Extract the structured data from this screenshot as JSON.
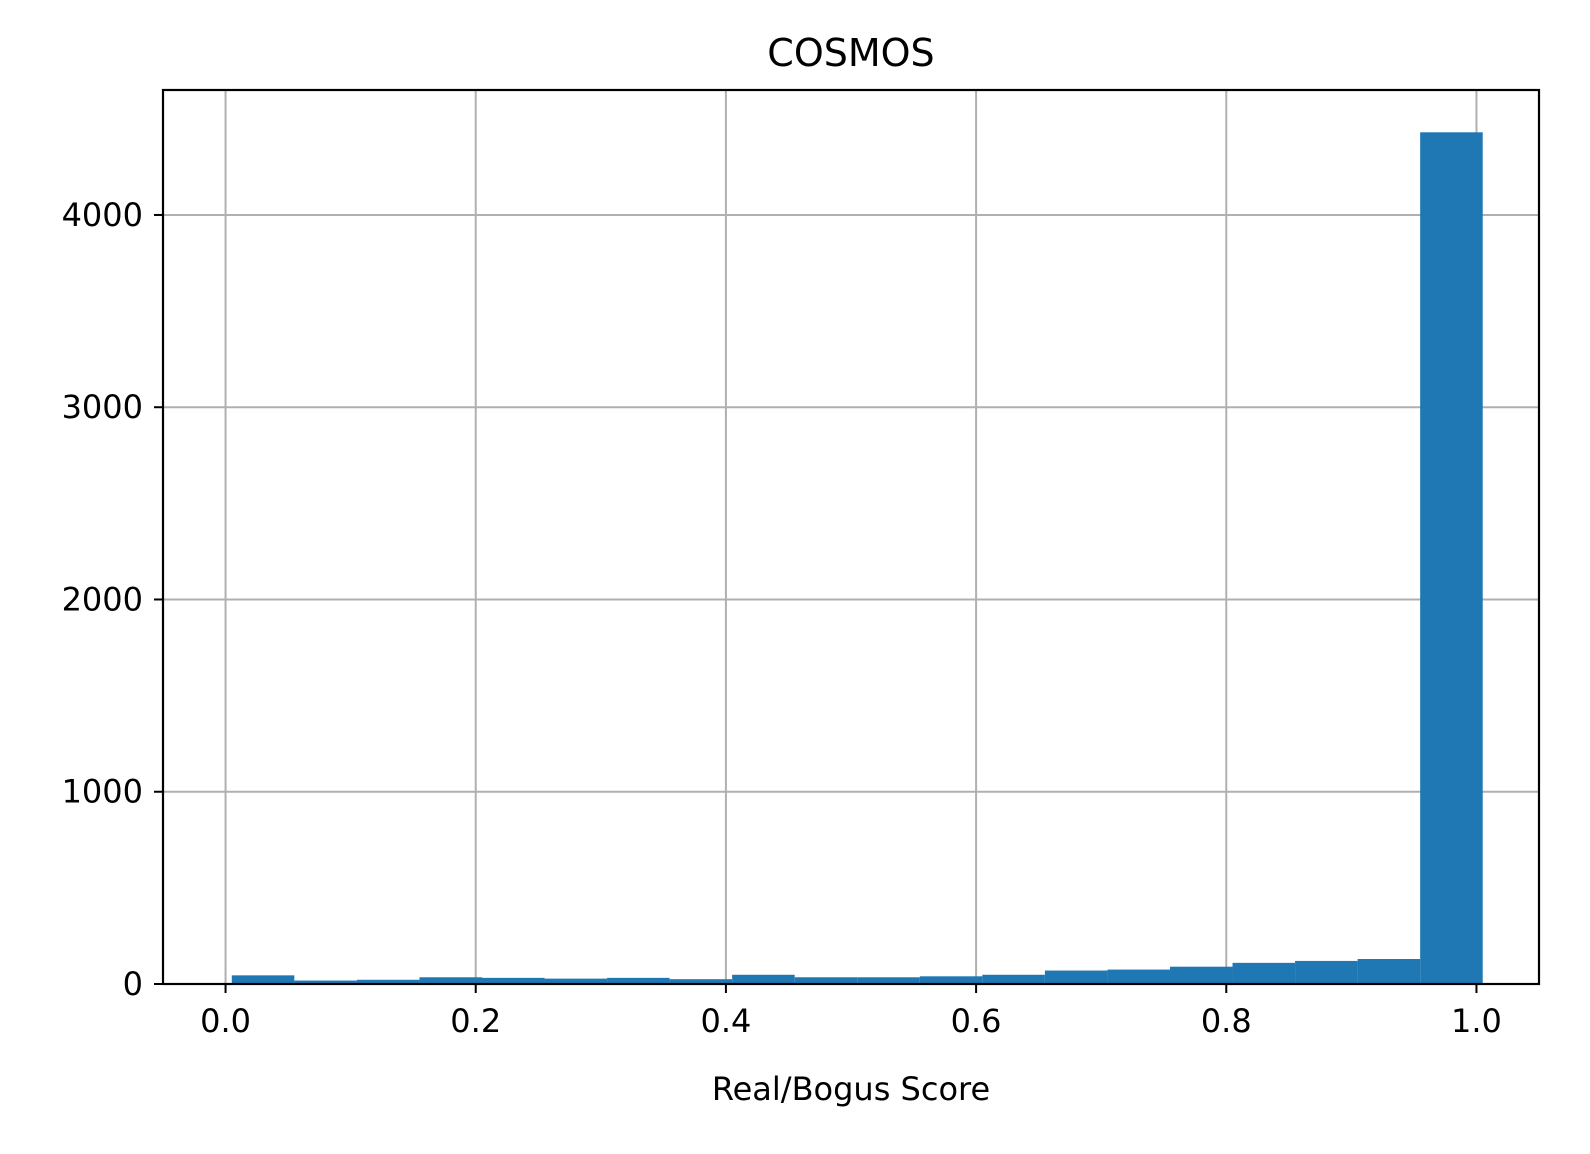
{
  "chart_data": {
    "type": "bar",
    "title": "COSMOS",
    "xlabel": "Real/Bogus Score",
    "ylabel": "",
    "xlim": [
      -0.05,
      1.05
    ],
    "ylim": [
      0,
      4650
    ],
    "grid": true,
    "bar_color": "#1f77b4",
    "grid_color": "#b0b0b0",
    "x_ticks": [
      0.0,
      0.2,
      0.4,
      0.6,
      0.8,
      1.0
    ],
    "x_tick_labels": [
      "0.0",
      "0.2",
      "0.4",
      "0.6",
      "0.8",
      "1.0"
    ],
    "y_ticks": [
      0,
      1000,
      2000,
      3000,
      4000
    ],
    "y_tick_labels": [
      "0",
      "1000",
      "2000",
      "3000",
      "4000"
    ],
    "bins": [
      {
        "x0": 0.005,
        "x1": 0.055,
        "count": 45
      },
      {
        "x0": 0.055,
        "x1": 0.105,
        "count": 18
      },
      {
        "x0": 0.105,
        "x1": 0.155,
        "count": 22
      },
      {
        "x0": 0.155,
        "x1": 0.205,
        "count": 35
      },
      {
        "x0": 0.205,
        "x1": 0.255,
        "count": 32
      },
      {
        "x0": 0.255,
        "x1": 0.305,
        "count": 28
      },
      {
        "x0": 0.305,
        "x1": 0.355,
        "count": 32
      },
      {
        "x0": 0.355,
        "x1": 0.405,
        "count": 25
      },
      {
        "x0": 0.405,
        "x1": 0.455,
        "count": 48
      },
      {
        "x0": 0.455,
        "x1": 0.505,
        "count": 35
      },
      {
        "x0": 0.505,
        "x1": 0.555,
        "count": 35
      },
      {
        "x0": 0.555,
        "x1": 0.605,
        "count": 40
      },
      {
        "x0": 0.605,
        "x1": 0.655,
        "count": 48
      },
      {
        "x0": 0.655,
        "x1": 0.705,
        "count": 70
      },
      {
        "x0": 0.705,
        "x1": 0.755,
        "count": 75
      },
      {
        "x0": 0.755,
        "x1": 0.805,
        "count": 90
      },
      {
        "x0": 0.805,
        "x1": 0.855,
        "count": 110
      },
      {
        "x0": 0.855,
        "x1": 0.905,
        "count": 120
      },
      {
        "x0": 0.905,
        "x1": 0.955,
        "count": 130
      },
      {
        "x0": 0.955,
        "x1": 1.005,
        "count": 4430
      }
    ]
  }
}
